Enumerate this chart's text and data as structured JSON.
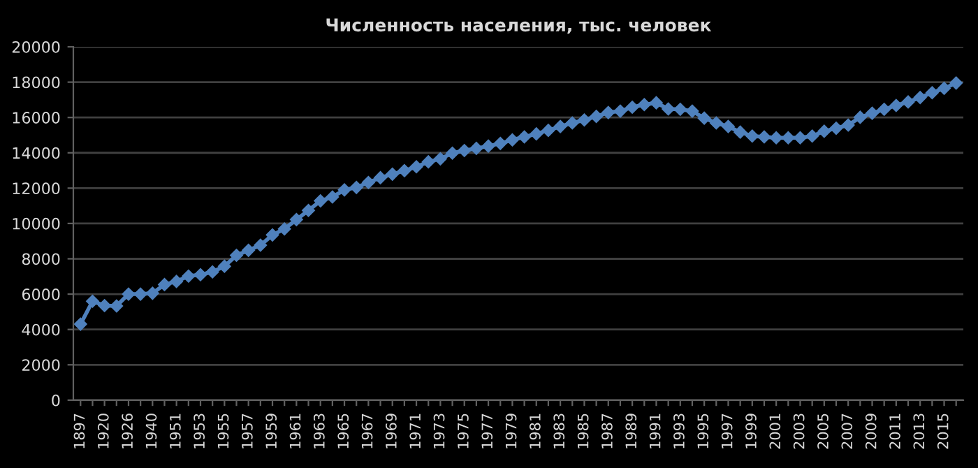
{
  "chart_data": {
    "type": "line",
    "title": "Численность населения, тыс. человек",
    "categories": [
      "1897",
      null,
      "1920",
      null,
      "1926",
      null,
      "1940",
      null,
      "1951",
      null,
      "1953",
      null,
      "1955",
      null,
      "1957",
      null,
      "1959",
      null,
      "1961",
      null,
      "1963",
      null,
      "1965",
      null,
      "1967",
      null,
      "1969",
      null,
      "1971",
      null,
      "1973",
      null,
      "1975",
      null,
      "1977",
      null,
      "1979",
      null,
      "1981",
      null,
      "1983",
      null,
      "1985",
      null,
      "1987",
      null,
      "1989",
      null,
      "1991",
      null,
      "1993",
      null,
      "1995",
      null,
      "1997",
      null,
      "1999",
      null,
      "2001",
      null,
      "2003",
      null,
      "2005",
      null,
      "2007",
      null,
      "2009",
      null,
      "2011",
      null,
      "2013",
      null,
      "2015",
      null
    ],
    "series": [
      {
        "color": "#4f81bd",
        "values": [
          4300,
          5600,
          5350,
          5330,
          6000,
          6000,
          6050,
          6540,
          6720,
          7020,
          7100,
          7260,
          7580,
          8200,
          8480,
          8770,
          9350,
          9690,
          10220,
          10740,
          11280,
          11500,
          11900,
          12040,
          12320,
          12590,
          12790,
          12990,
          13210,
          13490,
          13660,
          13980,
          14130,
          14250,
          14380,
          14530,
          14730,
          14900,
          15070,
          15270,
          15490,
          15690,
          15860,
          16060,
          16280,
          16360,
          16580,
          16730,
          16830,
          16480,
          16460,
          16360,
          15960,
          15690,
          15490,
          15170,
          14950,
          14900,
          14850,
          14850,
          14850,
          14950,
          15220,
          15390,
          15570,
          16010,
          16240,
          16460,
          16680,
          16880,
          17130,
          17400,
          17650,
          17950
        ]
      }
    ],
    "ylim": [
      0,
      20000
    ],
    "yticks": [
      0,
      2000,
      4000,
      6000,
      8000,
      10000,
      12000,
      14000,
      16000,
      18000,
      20000
    ],
    "grid": "y",
    "marker": "diamond",
    "line_style": "solid"
  }
}
